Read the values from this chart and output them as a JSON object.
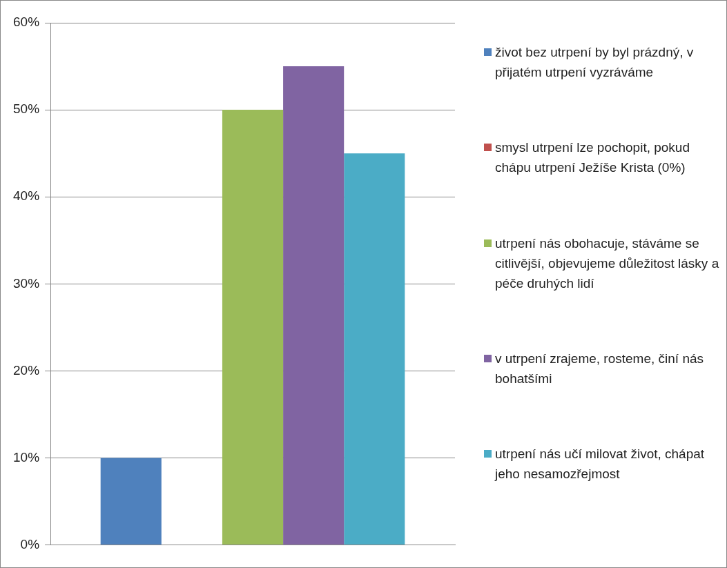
{
  "chart_data": {
    "type": "bar",
    "categories": [
      null
    ],
    "series": [
      {
        "name": "život bez utrpení by byl prázdný, v přijatém utrpení vyzráváme",
        "color": "#4f81bd",
        "values": [
          10
        ]
      },
      {
        "name": "smysl utrpení lze pochopit, pokud chápu utrpení Ježíše Krista (0%)",
        "color": "#c0504d",
        "values": [
          0
        ]
      },
      {
        "name": "utrpení nás obohacuje, stáváme se citlivější, objevujeme důležitost lásky a péče druhých lidí",
        "color": "#9bbb59",
        "values": [
          50
        ]
      },
      {
        "name": "v utrpení zrajeme, rosteme, činí nás bohatšími",
        "color": "#8064a2",
        "values": [
          55
        ]
      },
      {
        "name": "utrpení nás učí milovat život, chápat jeho nesamozřejmost",
        "color": "#4bacc6",
        "values": [
          45
        ]
      }
    ],
    "ylim": [
      0,
      60
    ],
    "yticks": [
      {
        "value": 0,
        "label": "0%"
      },
      {
        "value": 10,
        "label": "10%"
      },
      {
        "value": 20,
        "label": "20%"
      },
      {
        "value": 30,
        "label": "30%"
      },
      {
        "value": 40,
        "label": "40%"
      },
      {
        "value": 50,
        "label": "50%"
      },
      {
        "value": 60,
        "label": "60%"
      }
    ],
    "grid": "y",
    "legend": "right"
  }
}
